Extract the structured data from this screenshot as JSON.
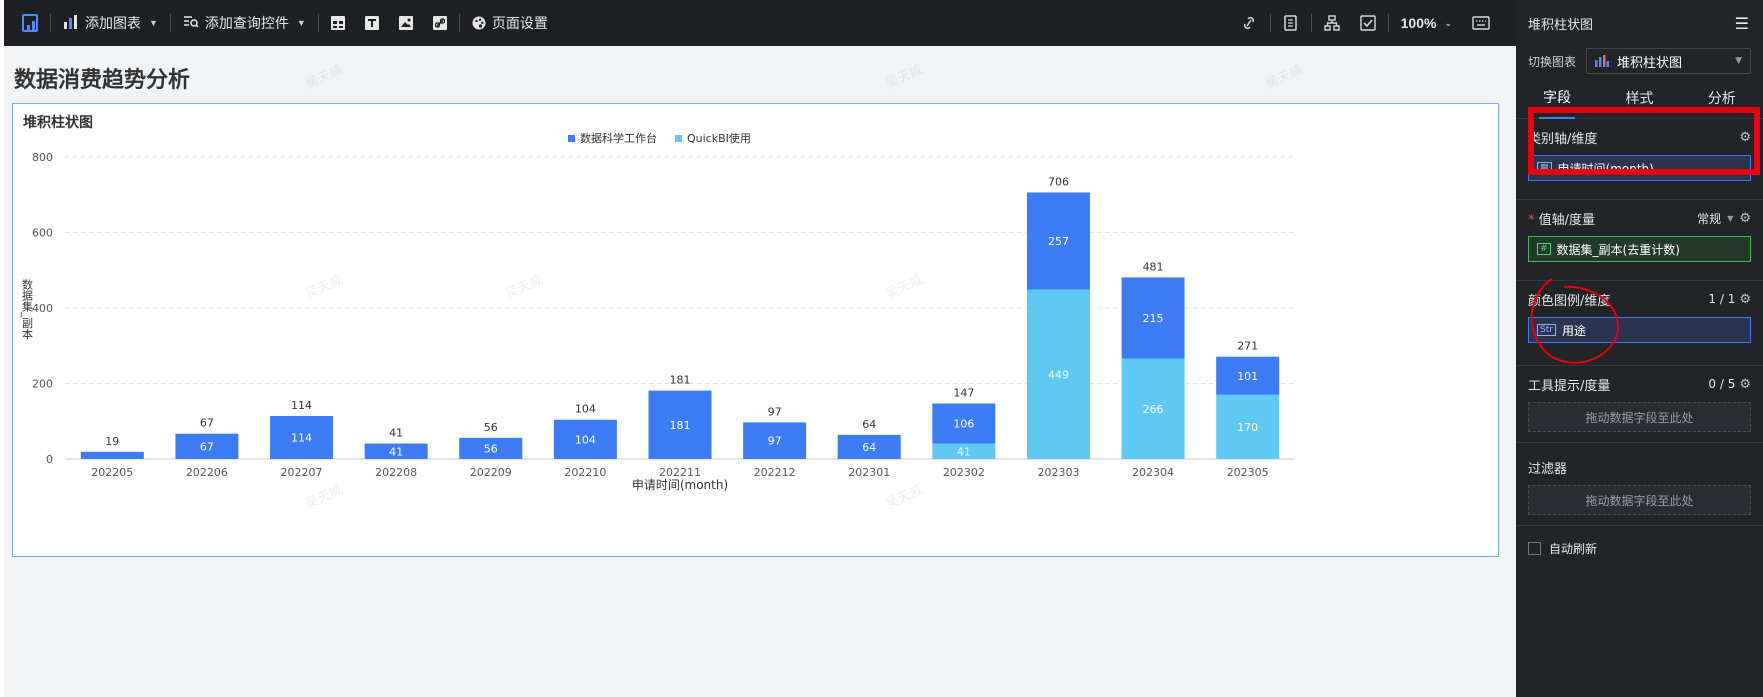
{
  "toolbar": {
    "add_chart": "添加图表",
    "add_query": "添加查询控件",
    "page_settings": "页面设置",
    "zoom": "100%"
  },
  "page": {
    "title": "数据消费趋势分析"
  },
  "chart_data": {
    "type": "bar",
    "stacked": true,
    "title": "堆积柱状图",
    "xlabel": "申请时间(month)",
    "ylabel": "数据集_副本",
    "ylim": [
      0,
      800
    ],
    "yticks": [
      0,
      200,
      400,
      600,
      800
    ],
    "legend_position": "top-center",
    "grid": true,
    "categories": [
      "202205",
      "202206",
      "202207",
      "202208",
      "202209",
      "202210",
      "202211",
      "202212",
      "202301",
      "202302",
      "202303",
      "202304",
      "202305"
    ],
    "series": [
      {
        "name": "QuickBI使用",
        "color": "#5ecaf4",
        "values": [
          0,
          0,
          0,
          0,
          0,
          0,
          0,
          0,
          0,
          41,
          449,
          266,
          170
        ]
      },
      {
        "name": "数据科学工作台",
        "color": "#3b7cf5",
        "values": [
          19,
          67,
          114,
          41,
          56,
          104,
          181,
          97,
          64,
          106,
          257,
          215,
          101
        ]
      }
    ],
    "segment_labels": [
      [
        null,
        null,
        null,
        null,
        null,
        null,
        null,
        null,
        null,
        "41",
        "449",
        "266",
        "170"
      ],
      [
        null,
        "67",
        "114",
        "41",
        "56",
        "104",
        "181",
        "97",
        "64",
        "106",
        "257",
        "215",
        "101"
      ]
    ],
    "totals": [
      "19",
      "67",
      "114",
      "41",
      "56",
      "104",
      "181",
      "97",
      "64",
      "147",
      "706",
      "481",
      "271"
    ]
  },
  "panel": {
    "title": "堆积柱状图",
    "switch_label": "切换图表",
    "switch_value": "堆积柱状图",
    "tabs": [
      "字段",
      "样式",
      "分析"
    ],
    "category_axis": {
      "label": "类别轴/维度",
      "field": "申请时间(month)"
    },
    "value_axis": {
      "label": "值轴/度量",
      "mode": "常规",
      "field": "数据集_副本(去重计数)"
    },
    "color_legend": {
      "label": "颜色图例/维度",
      "count": "1 / 1",
      "field": "用途"
    },
    "tooltip": {
      "label": "工具提示/度量",
      "count": "0 / 5",
      "drop": "拖动数据字段至此处"
    },
    "filter": {
      "label": "过滤器",
      "drop": "拖动数据字段至此处"
    },
    "auto_refresh": "自动刷新"
  },
  "colors": {
    "accent": "#3b7cff",
    "series_dark": "#3b7cf5",
    "series_light": "#5ecaf4",
    "annotation_red": "#e8000f"
  }
}
